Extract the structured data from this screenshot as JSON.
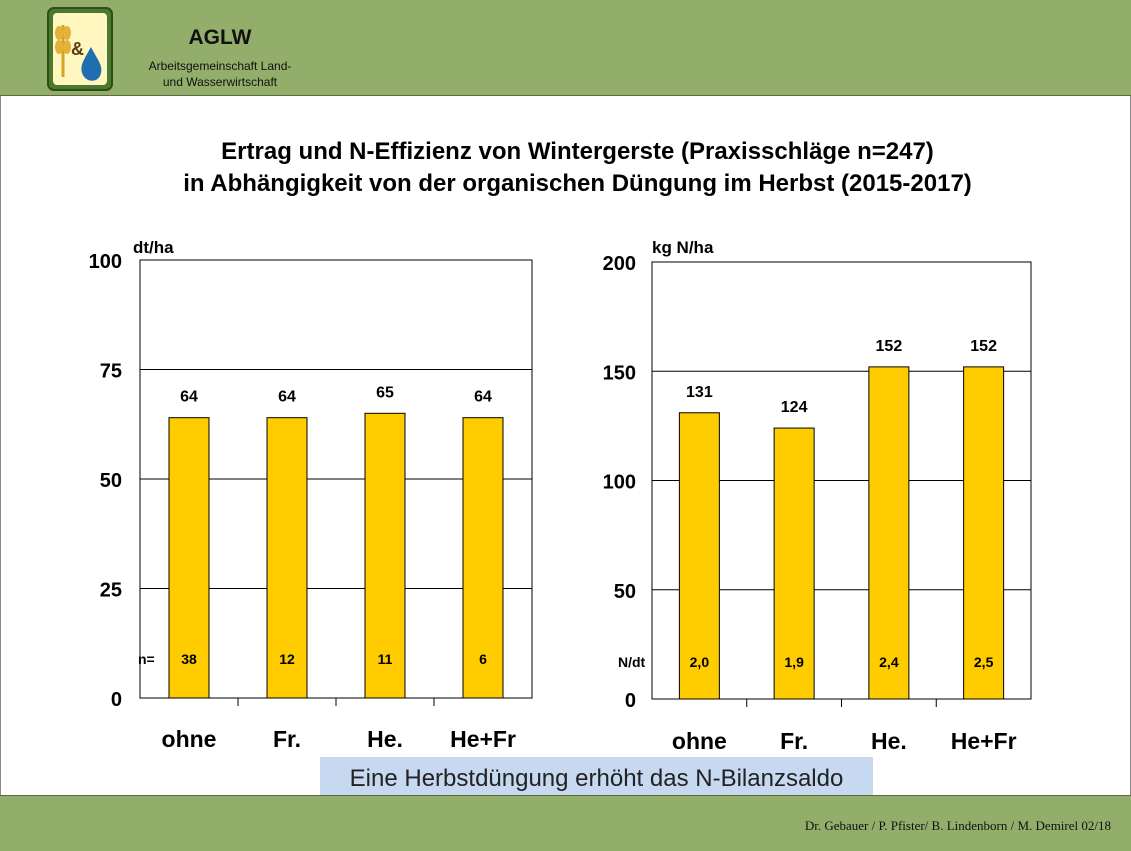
{
  "header": {
    "org_name": "AGLW",
    "org_subtitle_line1": "Arbeitsgemeinschaft Land-",
    "org_subtitle_line2": "und Wasserwirtschaft",
    "logo_text": "&"
  },
  "slide": {
    "title_line1": "Ertrag und N-Effizienz von Wintergerste (Praxisschläge n=247)",
    "title_line2": "in Abhängigkeit von der organischen Düngung im Herbst (2015-2017)",
    "callout": "Eine Herbstdüngung erhöht das N-Bilanzsaldo",
    "footer_credits": "Dr. Gebauer / P. Pfister/ B. Lindenborn / M. Demirel 02/18"
  },
  "colors": {
    "bar": "#ffcc00",
    "header_bg": "#93ad6a",
    "callout_bg": "#c6d9f1"
  },
  "chart_data": [
    {
      "type": "bar",
      "ylabel": "dt/ha",
      "ylim": [
        0,
        100
      ],
      "yticks": [
        0,
        25,
        50,
        75,
        100
      ],
      "categories": [
        "ohne",
        "Fr.",
        "He.",
        "He+Fr"
      ],
      "values": [
        64,
        64,
        65,
        64
      ],
      "value_labels": [
        "64",
        "64",
        "65",
        "64"
      ],
      "inner_label_title": "n=",
      "inner_labels": [
        "38",
        "12",
        "11",
        "6"
      ],
      "gridlines": true
    },
    {
      "type": "bar",
      "ylabel": "kg N/ha",
      "ylim": [
        0,
        200
      ],
      "yticks": [
        0,
        50,
        100,
        150,
        200
      ],
      "categories": [
        "ohne",
        "Fr.",
        "He.",
        "He+Fr"
      ],
      "values": [
        131,
        124,
        152,
        152
      ],
      "value_labels": [
        "131",
        "124",
        "152",
        "152"
      ],
      "inner_label_title": "N/dt",
      "inner_labels": [
        "2,0",
        "1,9",
        "2,4",
        "2,5"
      ],
      "gridlines": true
    }
  ]
}
